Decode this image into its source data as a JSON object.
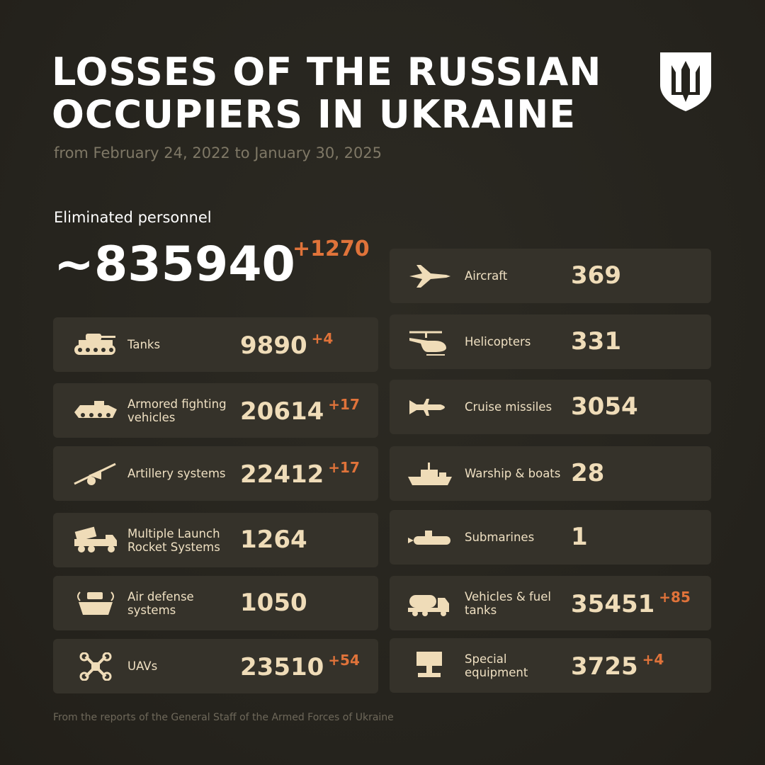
{
  "header": {
    "title_line1": "LOSSES OF THE RUSSIAN",
    "title_line2": "OCCUPIERS IN UKRAINE",
    "subtitle": "from February 24, 2022 to January 30, 2025",
    "logo": "trident-shield-icon"
  },
  "personnel": {
    "label": "Eliminated personnel",
    "value": "~835940",
    "delta": "+1270"
  },
  "colors": {
    "accent": "#e0733a",
    "card": "#35322a",
    "text": "#efdcb8",
    "background": "#25231d"
  },
  "left": [
    {
      "label": "Tanks",
      "value": "9890",
      "delta": "+4",
      "icon": "tank-icon"
    },
    {
      "label": "Armored fighting vehicles",
      "value": "20614",
      "delta": "+17",
      "icon": "apc-icon"
    },
    {
      "label": "Artillery systems",
      "value": "22412",
      "delta": "+17",
      "icon": "artillery-icon"
    },
    {
      "label": "Multiple Launch Rocket Systems",
      "value": "1264",
      "delta": "",
      "icon": "mlrs-icon"
    },
    {
      "label": "Air defense systems",
      "value": "1050",
      "delta": "",
      "icon": "air-defense-icon"
    },
    {
      "label": "UAVs",
      "value": "23510",
      "delta": "+54",
      "icon": "drone-icon"
    }
  ],
  "right": [
    {
      "label": "Aircraft",
      "value": "369",
      "delta": "",
      "icon": "jet-icon"
    },
    {
      "label": "Helicopters",
      "value": "331",
      "delta": "",
      "icon": "helicopter-icon"
    },
    {
      "label": "Cruise missiles",
      "value": "3054",
      "delta": "",
      "icon": "missile-icon"
    },
    {
      "label": "Warship & boats",
      "value": "28",
      "delta": "",
      "icon": "warship-icon"
    },
    {
      "label": "Submarines",
      "value": "1",
      "delta": "",
      "icon": "submarine-icon"
    },
    {
      "label": "Vehicles & fuel tanks",
      "value": "35451",
      "delta": "+85",
      "icon": "fuel-truck-icon"
    },
    {
      "label": "Special equipment",
      "value": "3725",
      "delta": "+4",
      "icon": "special-equipment-icon"
    }
  ],
  "footer": "From the reports of the General Staff of the Armed Forces of Ukraine"
}
